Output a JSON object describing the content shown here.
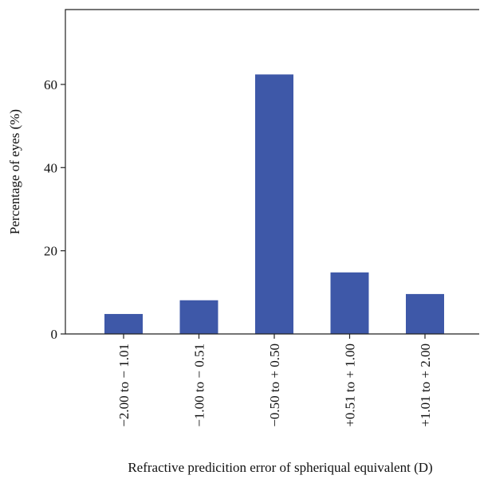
{
  "chart_data": {
    "type": "bar",
    "title": "",
    "xlabel": "Refractive predicition error of spheriqual equivalent (D)",
    "ylabel": "Percentage of eyes (%)",
    "categories": [
      "−2.00 to − 1.01",
      "−1.00 to − 0.51",
      "−0.50 to + 0.50",
      "+0.51 to + 1.00",
      "+1.01 to + 2.00"
    ],
    "values": [
      4.8,
      8.1,
      62.4,
      14.8,
      9.6
    ],
    "ylim": [
      0,
      78
    ],
    "yticks": [
      0,
      20,
      40,
      60
    ],
    "bar_color": "#3e58a8",
    "grid": false,
    "legend": "none"
  }
}
